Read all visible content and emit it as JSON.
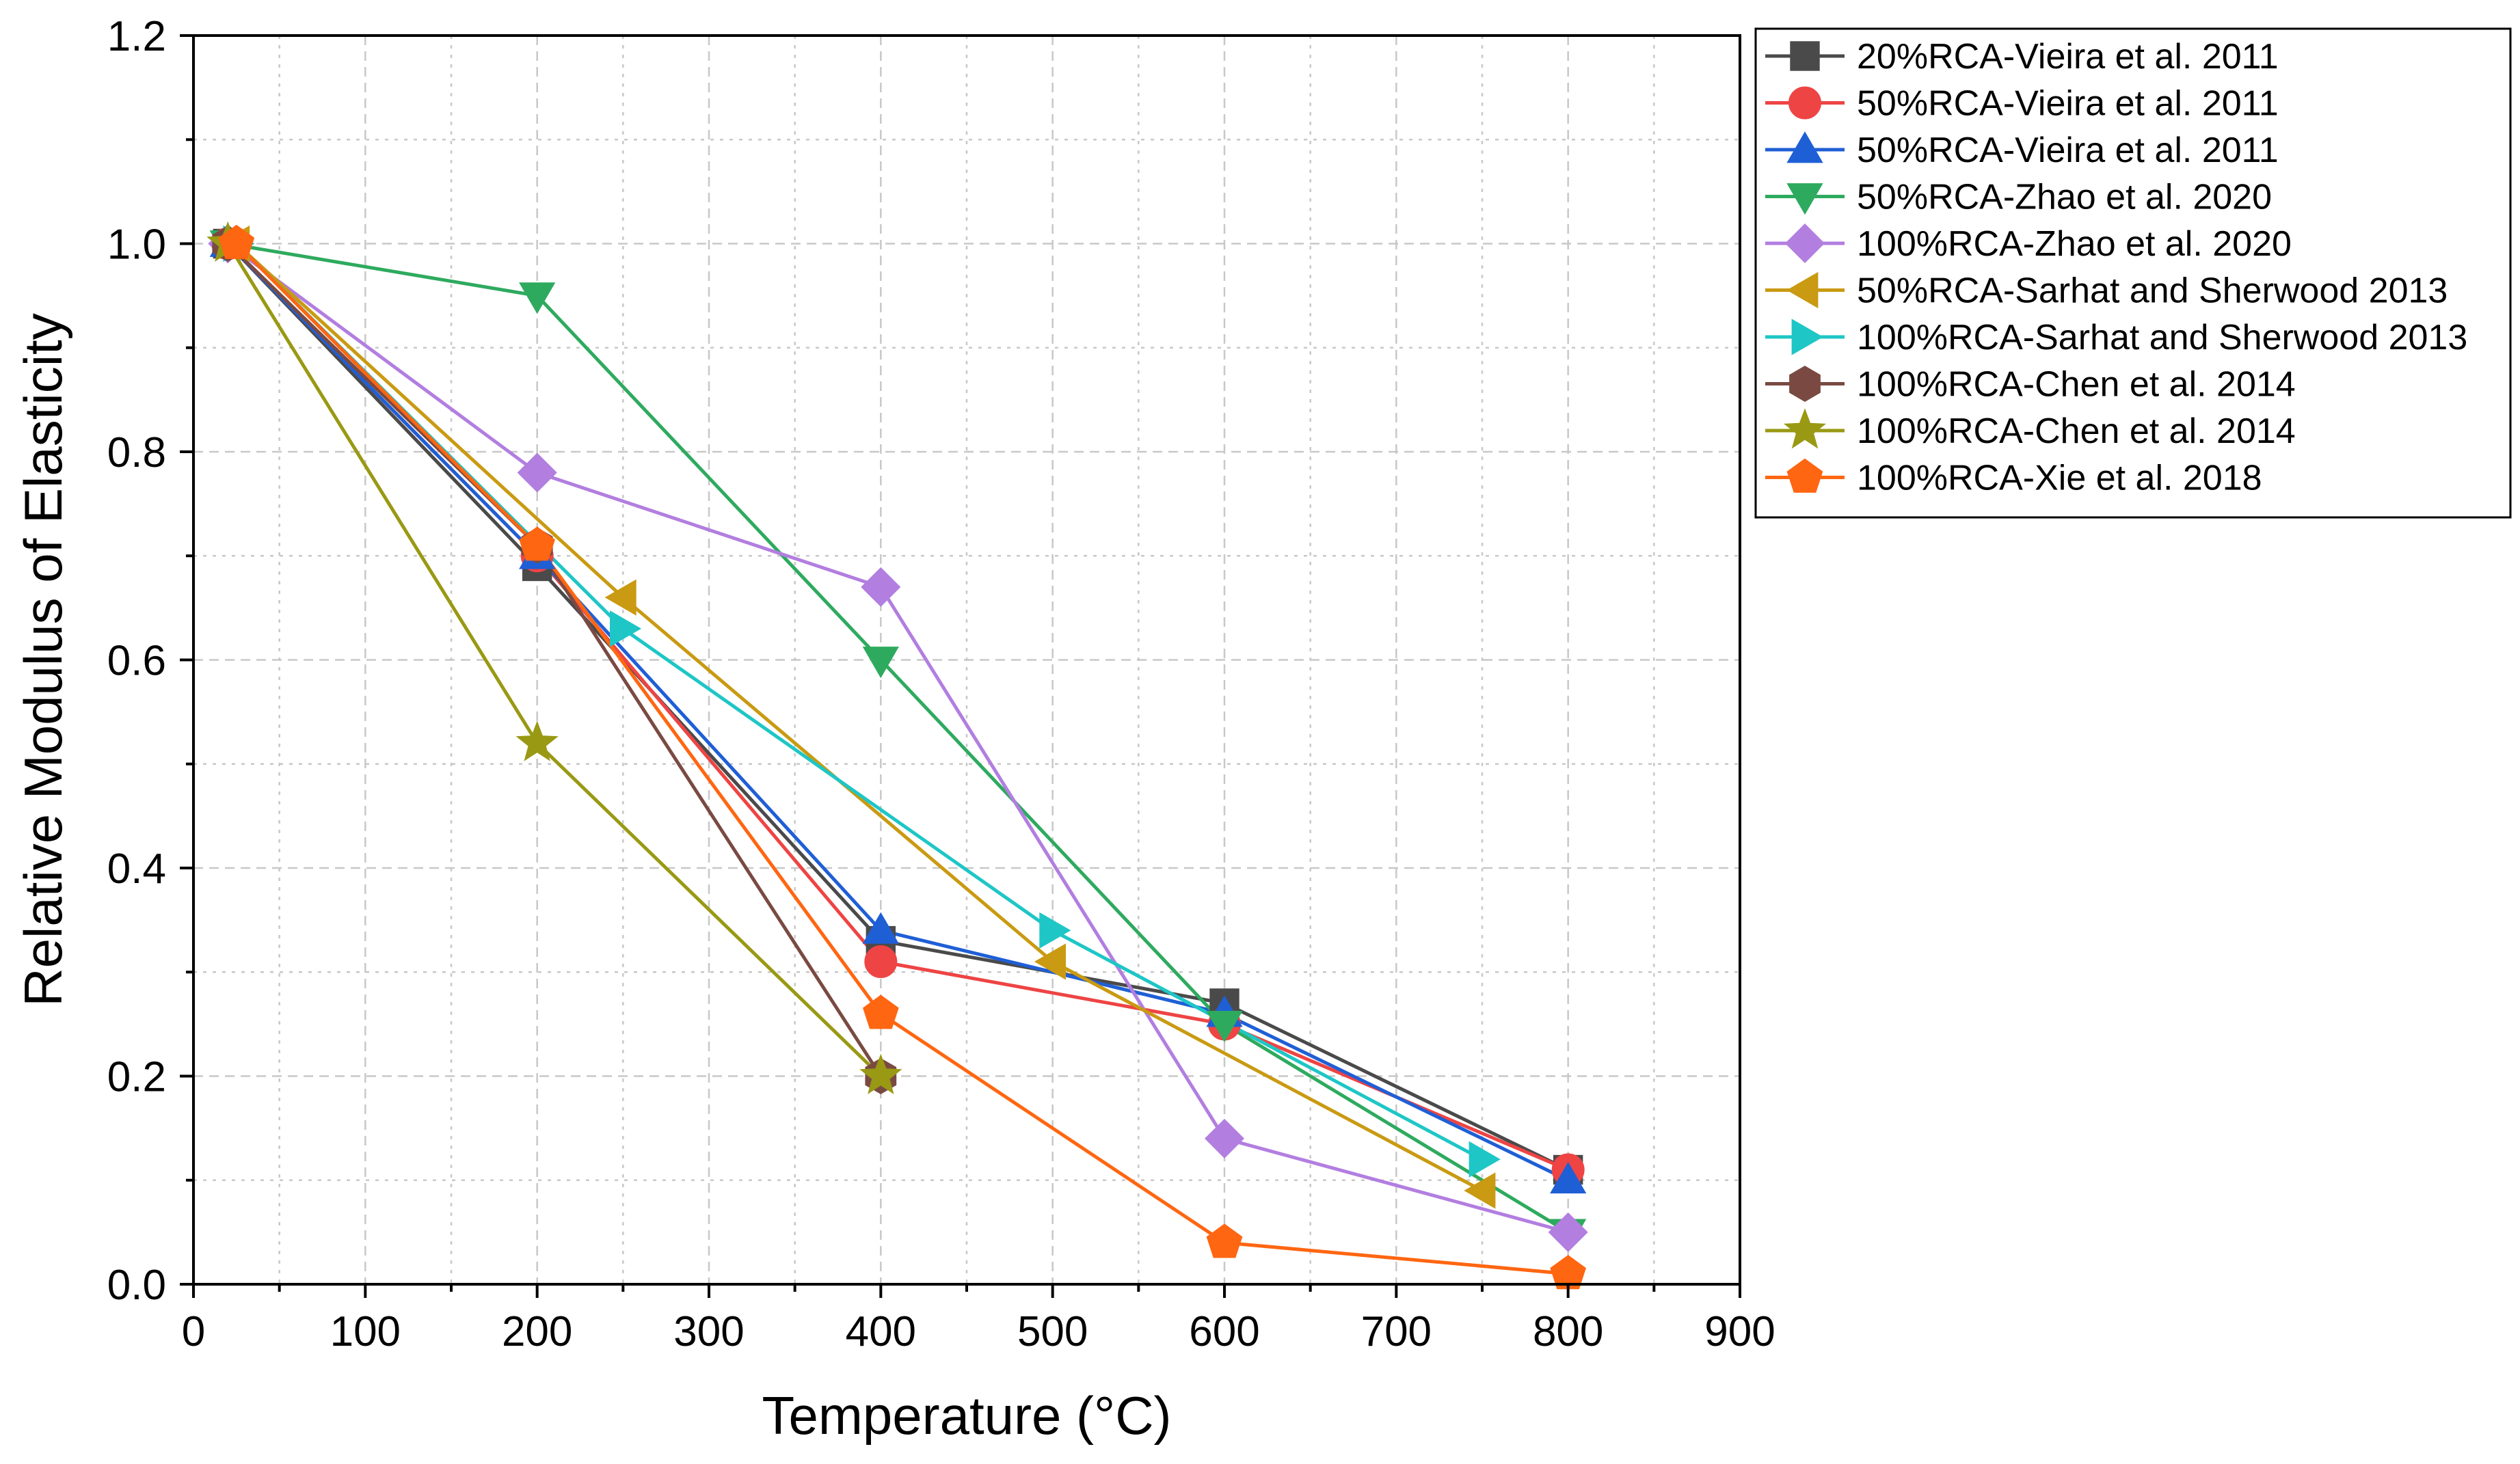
{
  "chart_data": {
    "type": "line",
    "xlabel": "Temperature (°C)",
    "ylabel": "Relative Modulus of Elasticity",
    "xlim": [
      0,
      900
    ],
    "ylim": [
      0,
      1.2
    ],
    "x_ticks": [
      "0",
      "100",
      "200",
      "300",
      "400",
      "500",
      "600",
      "700",
      "800",
      "900"
    ],
    "y_ticks": [
      "0.0",
      "0.2",
      "0.4",
      "0.6",
      "0.8",
      "1.0",
      "1.2"
    ],
    "grid": true,
    "legend_position": "right, outside plot area, top",
    "series": [
      {
        "name": "20%RCA-Vieira et al. 2011",
        "color": "#4a4a4a",
        "marker": "square",
        "x": [
          20,
          200,
          400,
          600,
          800
        ],
        "y": [
          1.0,
          0.69,
          0.33,
          0.27,
          0.11
        ]
      },
      {
        "name": "50%RCA-Vieira et al. 2011",
        "color": "#ee4444",
        "marker": "circle",
        "x": [
          20,
          200,
          400,
          600,
          800
        ],
        "y": [
          1.0,
          0.7,
          0.31,
          0.25,
          0.11
        ]
      },
      {
        "name": "50%RCA-Vieira et al. 2011",
        "color": "#1f5fd6",
        "marker": "triangle-up",
        "x": [
          20,
          200,
          400,
          600,
          800
        ],
        "y": [
          1.0,
          0.7,
          0.34,
          0.26,
          0.1
        ]
      },
      {
        "name": "50%RCA-Zhao et al. 2020",
        "color": "#2eaa5f",
        "marker": "triangle-down",
        "x": [
          20,
          200,
          400,
          600,
          800
        ],
        "y": [
          1.0,
          0.95,
          0.6,
          0.25,
          0.05
        ]
      },
      {
        "name": "100%RCA-Zhao et al. 2020",
        "color": "#b27ee0",
        "marker": "diamond",
        "x": [
          20,
          200,
          400,
          600,
          800
        ],
        "y": [
          1.0,
          0.78,
          0.67,
          0.14,
          0.05
        ]
      },
      {
        "name": "50%RCA-Sarhat and Sherwood 2013",
        "color": "#c99a12",
        "marker": "triangle-left",
        "x": [
          25,
          250,
          500,
          750
        ],
        "y": [
          1.0,
          0.66,
          0.31,
          0.09
        ]
      },
      {
        "name": "100%RCA-Sarhat and Sherwood 2013",
        "color": "#1ec6c6",
        "marker": "triangle-right",
        "x": [
          25,
          250,
          500,
          750
        ],
        "y": [
          1.0,
          0.63,
          0.34,
          0.12
        ]
      },
      {
        "name": "100%RCA-Chen et al. 2014",
        "color": "#7a4a42",
        "marker": "hexagon",
        "x": [
          20,
          200,
          400
        ],
        "y": [
          1.0,
          0.71,
          0.2
        ]
      },
      {
        "name": "100%RCA-Chen et al. 2014",
        "color": "#999914",
        "marker": "star",
        "x": [
          20,
          200,
          400
        ],
        "y": [
          1.0,
          0.52,
          0.2
        ]
      },
      {
        "name": "100%RCA-Xie et al. 2018",
        "color": "#ff6611",
        "marker": "pentagon",
        "x": [
          25,
          200,
          400,
          600,
          800
        ],
        "y": [
          1.0,
          0.71,
          0.26,
          0.04,
          0.01
        ]
      }
    ]
  }
}
